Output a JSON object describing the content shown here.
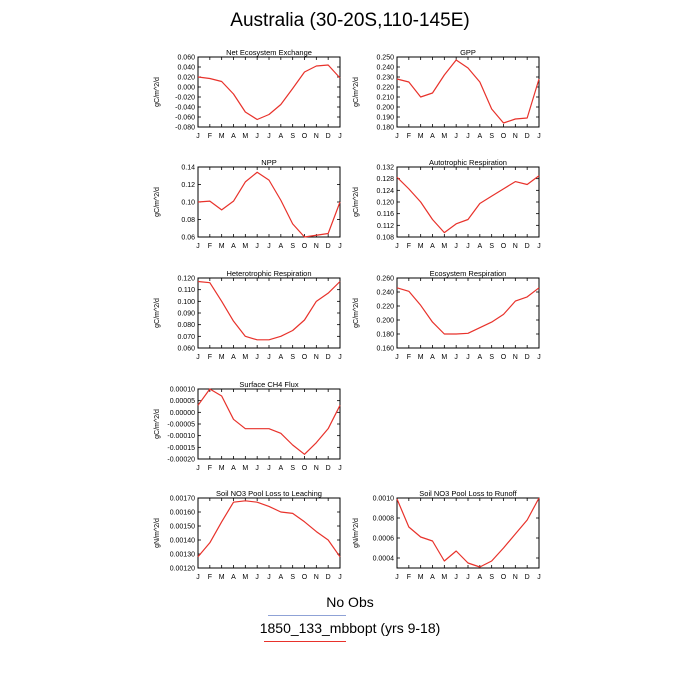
{
  "title": "Australia (30-20S,110-145E)",
  "legend": {
    "obs_label": "No Obs",
    "obs_color": "#8fa2d6",
    "model_label": "1850_133_mbbopt (yrs 9-18)",
    "model_color": "#e8322b"
  },
  "chart_data": [
    {
      "type": "line",
      "title": "Net Ecosystem Exchange",
      "ylabel": "gC/m^2/d",
      "x": [
        "J",
        "F",
        "M",
        "A",
        "M",
        "J",
        "J",
        "A",
        "S",
        "O",
        "N",
        "D",
        "J"
      ],
      "ylim": [
        -0.08,
        0.06
      ],
      "yticks": [
        "-0.080",
        "-0.060",
        "-0.040",
        "-0.020",
        "0.000",
        "0.020",
        "0.040",
        "0.060"
      ],
      "series": [
        {
          "values": [
            0.02,
            0.017,
            0.011,
            -0.014,
            -0.05,
            -0.065,
            -0.055,
            -0.035,
            -0.003,
            0.03,
            0.042,
            0.044,
            0.018
          ]
        }
      ]
    },
    {
      "type": "line",
      "title": "GPP",
      "ylabel": "gC/m^2/d",
      "x": [
        "J",
        "F",
        "M",
        "A",
        "M",
        "J",
        "J",
        "A",
        "S",
        "O",
        "N",
        "D",
        "J"
      ],
      "ylim": [
        0.18,
        0.25
      ],
      "yticks": [
        "0.180",
        "0.190",
        "0.200",
        "0.210",
        "0.220",
        "0.230",
        "0.240",
        "0.250"
      ],
      "series": [
        {
          "values": [
            0.228,
            0.225,
            0.21,
            0.214,
            0.232,
            0.247,
            0.239,
            0.225,
            0.198,
            0.184,
            0.188,
            0.189,
            0.228
          ]
        }
      ]
    },
    {
      "type": "line",
      "title": "NPP",
      "ylabel": "gC/m^2/d",
      "x": [
        "J",
        "F",
        "M",
        "A",
        "M",
        "J",
        "J",
        "A",
        "S",
        "O",
        "N",
        "D",
        "J"
      ],
      "ylim": [
        0.06,
        0.14
      ],
      "yticks": [
        "0.06",
        "0.08",
        "0.10",
        "0.12",
        "0.14"
      ],
      "series": [
        {
          "values": [
            0.1,
            0.101,
            0.091,
            0.101,
            0.123,
            0.134,
            0.125,
            0.102,
            0.075,
            0.06,
            0.062,
            0.064,
            0.1
          ]
        }
      ]
    },
    {
      "type": "line",
      "title": "Autotrophic Respiration",
      "ylabel": "gC/m^2/d",
      "x": [
        "J",
        "F",
        "M",
        "A",
        "M",
        "J",
        "J",
        "A",
        "S",
        "O",
        "N",
        "D",
        "J"
      ],
      "ylim": [
        0.108,
        0.132
      ],
      "yticks": [
        "0.108",
        "0.112",
        "0.116",
        "0.120",
        "0.124",
        "0.128",
        "0.132"
      ],
      "series": [
        {
          "values": [
            0.1285,
            0.1245,
            0.12,
            0.114,
            0.1095,
            0.1125,
            0.114,
            0.1195,
            0.122,
            0.1245,
            0.127,
            0.126,
            0.129
          ]
        }
      ]
    },
    {
      "type": "line",
      "title": "Heterotrophic Respiration",
      "ylabel": "gC/m^2/d",
      "x": [
        "J",
        "F",
        "M",
        "A",
        "M",
        "J",
        "J",
        "A",
        "S",
        "O",
        "N",
        "D",
        "J"
      ],
      "ylim": [
        0.06,
        0.12
      ],
      "yticks": [
        "0.060",
        "0.070",
        "0.080",
        "0.090",
        "0.100",
        "0.110",
        "0.120"
      ],
      "series": [
        {
          "values": [
            0.117,
            0.116,
            0.1,
            0.083,
            0.07,
            0.067,
            0.067,
            0.07,
            0.075,
            0.084,
            0.1,
            0.107,
            0.117
          ]
        }
      ]
    },
    {
      "type": "line",
      "title": "Ecosystem Respiration",
      "ylabel": "gC/m^2/d",
      "x": [
        "J",
        "F",
        "M",
        "A",
        "M",
        "J",
        "J",
        "A",
        "S",
        "O",
        "N",
        "D",
        "J"
      ],
      "ylim": [
        0.16,
        0.26
      ],
      "yticks": [
        "0.160",
        "0.180",
        "0.200",
        "0.220",
        "0.240",
        "0.260"
      ],
      "series": [
        {
          "values": [
            0.246,
            0.241,
            0.221,
            0.197,
            0.18,
            0.18,
            0.181,
            0.189,
            0.197,
            0.208,
            0.227,
            0.233,
            0.246
          ]
        }
      ]
    },
    {
      "type": "line",
      "title": "Surface CH4 Flux",
      "ylabel": "gC/m^2/d",
      "x": [
        "J",
        "F",
        "M",
        "A",
        "M",
        "J",
        "J",
        "A",
        "S",
        "O",
        "N",
        "D",
        "J"
      ],
      "ylim": [
        -0.0002,
        0.0001
      ],
      "yticks": [
        "-0.00020",
        "-0.00015",
        "-0.00010",
        "-0.00005",
        "0.00000",
        "0.00005",
        "0.00010"
      ],
      "series": [
        {
          "values": [
            3e-05,
            0.0001,
            7e-05,
            -3e-05,
            -7e-05,
            -7e-05,
            -7e-05,
            -9e-05,
            -0.00014,
            -0.00018,
            -0.00013,
            -7e-05,
            3e-05
          ]
        }
      ]
    },
    {
      "type": "line",
      "title": "Soil NO3 Pool Loss to Leaching",
      "ylabel": "gN/m^2/d",
      "x": [
        "J",
        "F",
        "M",
        "A",
        "M",
        "J",
        "J",
        "A",
        "S",
        "O",
        "N",
        "D",
        "J"
      ],
      "ylim": [
        0.0012,
        0.0017
      ],
      "yticks": [
        "0.00120",
        "0.00130",
        "0.00140",
        "0.00150",
        "0.00160",
        "0.00170"
      ],
      "series": [
        {
          "values": [
            0.00128,
            0.00138,
            0.00153,
            0.00167,
            0.00168,
            0.00167,
            0.00164,
            0.0016,
            0.00159,
            0.00153,
            0.00146,
            0.0014,
            0.00128
          ]
        }
      ]
    },
    {
      "type": "line",
      "title": "Soil NO3 Pool Loss to Runoff",
      "ylabel": "gN/m^2/d",
      "x": [
        "J",
        "F",
        "M",
        "A",
        "M",
        "J",
        "J",
        "A",
        "S",
        "O",
        "N",
        "D",
        "J"
      ],
      "ylim": [
        0.0003,
        0.001
      ],
      "yticks": [
        "0.0004",
        "0.0006",
        "0.0008",
        "0.0010"
      ],
      "ytickvals": [
        0.0004,
        0.0006,
        0.0008,
        0.001
      ],
      "series": [
        {
          "values": [
            0.00099,
            0.00071,
            0.00061,
            0.00057,
            0.00037,
            0.00047,
            0.00035,
            0.00031,
            0.00037,
            0.0005,
            0.00064,
            0.00078,
            0.001
          ]
        }
      ]
    }
  ]
}
